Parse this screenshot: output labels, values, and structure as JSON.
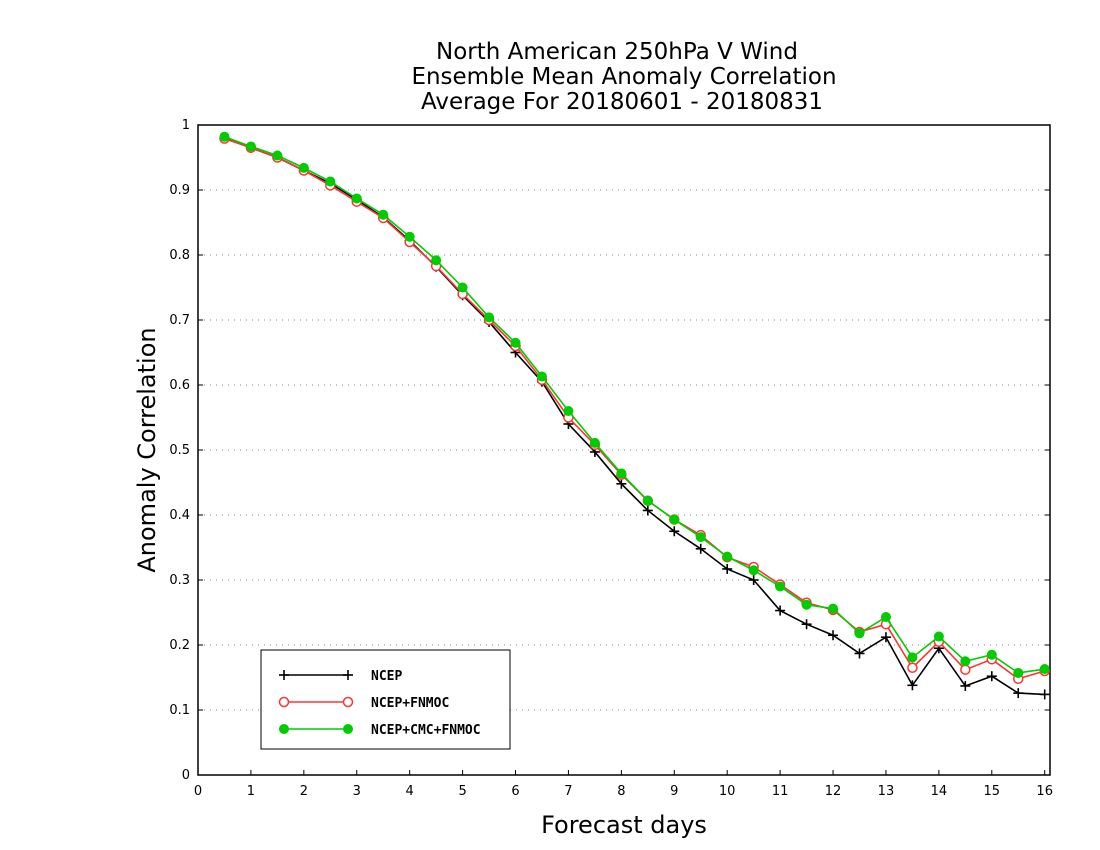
{
  "chart_data": {
    "type": "line",
    "title_lines": [
      "North American 250hPa V Wind",
      "Ensemble Mean Anomaly Correlation",
      "Average For 20180601 - 20180831"
    ],
    "xlabel": "Forecast days",
    "ylabel": "Anomaly Correlation",
    "xlim": [
      0,
      16.1
    ],
    "ylim": [
      0,
      1
    ],
    "xticks": [
      "0",
      "1",
      "2",
      "3",
      "4",
      "5",
      "6",
      "7",
      "8",
      "9",
      "10",
      "11",
      "12",
      "13",
      "14",
      "15",
      "16"
    ],
    "yticks": [
      "0",
      "0.1",
      "0.2",
      "0.3",
      "0.4",
      "0.5",
      "0.6",
      "0.7",
      "0.8",
      "0.9",
      "1"
    ],
    "grid": "horizontal-dotted",
    "legend_position": "bottom-left",
    "x": [
      0.5,
      1,
      1.5,
      2,
      2.5,
      3,
      3.5,
      4,
      4.5,
      5,
      5.5,
      6,
      6.5,
      7,
      7.5,
      8,
      8.5,
      9,
      9.5,
      10,
      10.5,
      11,
      11.5,
      12,
      12.5,
      13,
      13.5,
      14,
      14.5,
      15,
      15.5,
      16
    ],
    "series": [
      {
        "name": "NCEP",
        "color": "#000000",
        "marker": "plus",
        "values": [
          0.98,
          0.965,
          0.95,
          0.93,
          0.91,
          0.885,
          0.858,
          0.822,
          0.782,
          0.738,
          0.697,
          0.65,
          0.605,
          0.54,
          0.497,
          0.448,
          0.407,
          0.375,
          0.348,
          0.317,
          0.3,
          0.253,
          0.232,
          0.215,
          0.187,
          0.212,
          0.138,
          0.195,
          0.137,
          0.152,
          0.126,
          0.124
        ]
      },
      {
        "name": "NCEP+FNMOC",
        "color": "#ff3333",
        "marker": "open-circle",
        "values": [
          0.979,
          0.965,
          0.95,
          0.93,
          0.907,
          0.882,
          0.857,
          0.82,
          0.783,
          0.74,
          0.7,
          0.66,
          0.608,
          0.55,
          0.508,
          0.462,
          0.422,
          0.393,
          0.369,
          0.335,
          0.32,
          0.293,
          0.265,
          0.254,
          0.22,
          0.232,
          0.165,
          0.205,
          0.162,
          0.178,
          0.148,
          0.16
        ]
      },
      {
        "name": "NCEP+CMC+FNMOC",
        "color": "#00cc00",
        "marker": "filled-circle",
        "values": [
          0.982,
          0.967,
          0.953,
          0.934,
          0.913,
          0.887,
          0.862,
          0.828,
          0.792,
          0.75,
          0.704,
          0.665,
          0.613,
          0.56,
          0.511,
          0.464,
          0.422,
          0.393,
          0.366,
          0.336,
          0.315,
          0.29,
          0.262,
          0.256,
          0.218,
          0.243,
          0.181,
          0.213,
          0.175,
          0.185,
          0.157,
          0.163
        ]
      }
    ]
  }
}
